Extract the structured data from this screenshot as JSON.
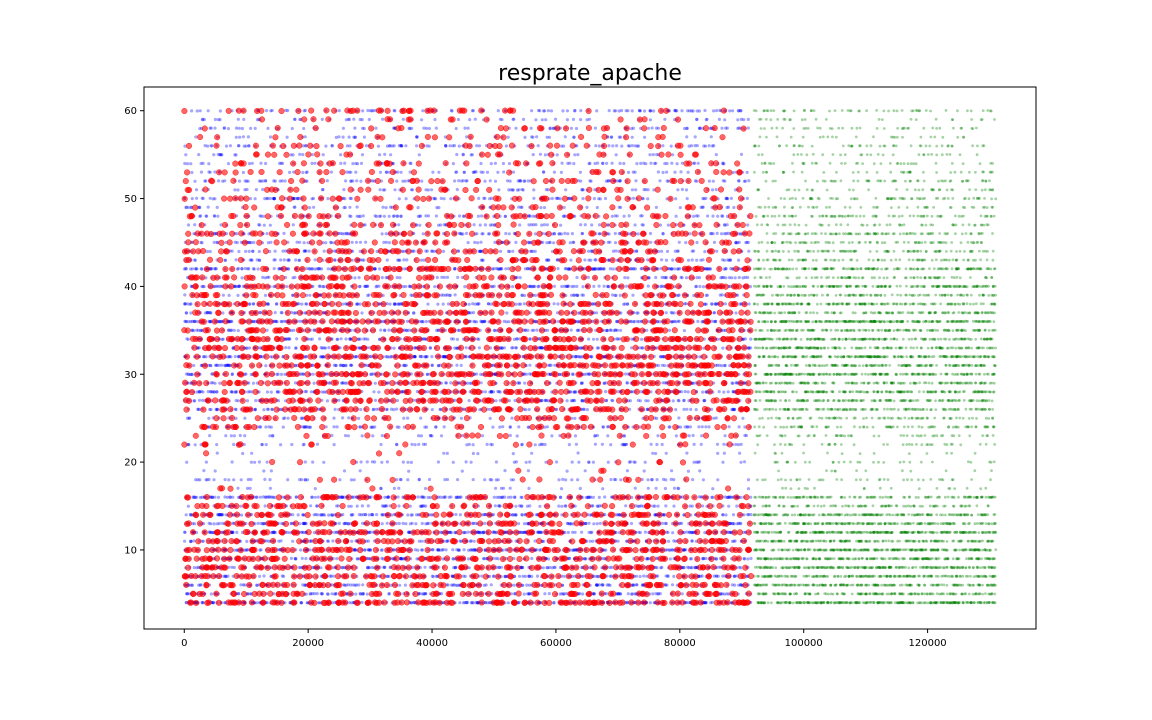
{
  "chart_data": {
    "type": "scatter",
    "title": "resprate_apache",
    "xlabel": "",
    "ylabel": "",
    "xlim": [
      -6500,
      137500
    ],
    "ylim": [
      1,
      62.7
    ],
    "x_ticks": [
      0,
      20000,
      40000,
      60000,
      80000,
      100000,
      120000
    ],
    "y_ticks": [
      10,
      20,
      30,
      40,
      50,
      60
    ],
    "x_tick_labels": [
      "0",
      "20000",
      "40000",
      "60000",
      "80000",
      "100000",
      "120000"
    ],
    "y_tick_labels": [
      "10",
      "20",
      "30",
      "40",
      "50",
      "60"
    ],
    "grid": false,
    "legend": "none",
    "series": [
      {
        "color": "#0000ff",
        "marker": "small dot, translucent",
        "x_range": [
          0,
          91500
        ],
        "y_values": "integers 4-60",
        "density_by_y": {
          "4": 1.0,
          "5": 0.6,
          "6": 0.6,
          "7": 0.65,
          "8": 0.8,
          "9": 0.7,
          "10": 0.85,
          "11": 0.6,
          "12": 0.9,
          "13": 0.7,
          "14": 0.7,
          "15": 0.35,
          "16": 0.8,
          "17": 0.08,
          "18": 0.2,
          "19": 0.05,
          "20": 0.15,
          "21": 0.05,
          "22": 0.2,
          "23": 0.15,
          "24": 0.3,
          "25": 0.25,
          "26": 0.5,
          "27": 0.5,
          "28": 0.6,
          "29": 0.5,
          "30": 0.7,
          "31": 0.6,
          "32": 0.8,
          "33": 0.6,
          "34": 0.6,
          "35": 0.55,
          "36": 0.9,
          "37": 0.5,
          "38": 0.55,
          "39": 0.4,
          "40": 0.6,
          "41": 0.3,
          "42": 0.8,
          "43": 0.35,
          "44": 0.45,
          "45": 0.35,
          "46": 0.45,
          "47": 0.25,
          "48": 0.35,
          "49": 0.2,
          "50": 0.35,
          "51": 0.2,
          "52": 0.3,
          "53": 0.2,
          "54": 0.25,
          "55": 0.15,
          "56": 0.3,
          "57": 0.15,
          "58": 0.25,
          "59": 0.2,
          "60": 0.35
        }
      },
      {
        "color": "#ff0000",
        "marker": "larger circle, semi-transparent",
        "x_range": [
          0,
          91500
        ],
        "y_values": "integers 4-60",
        "density_by_y": {
          "4": 0.8,
          "5": 0.55,
          "6": 0.6,
          "7": 0.55,
          "8": 0.6,
          "9": 0.6,
          "10": 0.65,
          "11": 0.55,
          "12": 0.6,
          "13": 0.55,
          "14": 0.5,
          "15": 0.35,
          "16": 0.45,
          "17": 0.04,
          "18": 0.08,
          "19": 0.02,
          "20": 0.05,
          "21": 0.02,
          "22": 0.1,
          "23": 0.15,
          "24": 0.3,
          "25": 0.35,
          "26": 0.55,
          "27": 0.6,
          "28": 0.65,
          "29": 0.6,
          "30": 0.75,
          "31": 0.65,
          "32": 0.7,
          "33": 0.65,
          "34": 0.65,
          "35": 0.6,
          "36": 0.65,
          "37": 0.6,
          "38": 0.55,
          "39": 0.5,
          "40": 0.55,
          "41": 0.4,
          "42": 0.5,
          "43": 0.35,
          "44": 0.4,
          "45": 0.35,
          "46": 0.4,
          "47": 0.25,
          "48": 0.3,
          "49": 0.2,
          "50": 0.25,
          "51": 0.2,
          "52": 0.22,
          "53": 0.18,
          "54": 0.2,
          "55": 0.15,
          "56": 0.2,
          "57": 0.12,
          "58": 0.15,
          "59": 0.1,
          "60": 0.25
        }
      },
      {
        "color": "#008000",
        "marker": "small dot, translucent",
        "x_range": [
          92000,
          131000
        ],
        "y_values": "integers 4-60",
        "density_by_y": {
          "4": 1.0,
          "5": 0.6,
          "6": 0.7,
          "7": 0.7,
          "8": 0.8,
          "9": 0.75,
          "10": 0.85,
          "11": 0.65,
          "12": 0.9,
          "13": 0.7,
          "14": 0.7,
          "15": 0.35,
          "16": 0.5,
          "17": 0.08,
          "18": 0.15,
          "19": 0.05,
          "20": 0.12,
          "21": 0.06,
          "22": 0.15,
          "23": 0.2,
          "24": 0.3,
          "25": 0.3,
          "26": 0.5,
          "27": 0.55,
          "28": 0.65,
          "29": 0.55,
          "30": 0.75,
          "31": 0.6,
          "32": 0.8,
          "33": 0.6,
          "34": 0.65,
          "35": 0.55,
          "36": 0.85,
          "37": 0.5,
          "38": 0.6,
          "39": 0.45,
          "40": 0.65,
          "41": 0.3,
          "42": 0.6,
          "43": 0.3,
          "44": 0.35,
          "45": 0.3,
          "46": 0.35,
          "47": 0.2,
          "48": 0.3,
          "49": 0.18,
          "50": 0.25,
          "51": 0.15,
          "52": 0.2,
          "53": 0.15,
          "54": 0.15,
          "55": 0.12,
          "56": 0.18,
          "57": 0.1,
          "58": 0.15,
          "59": 0.1,
          "60": 0.2
        }
      }
    ]
  }
}
